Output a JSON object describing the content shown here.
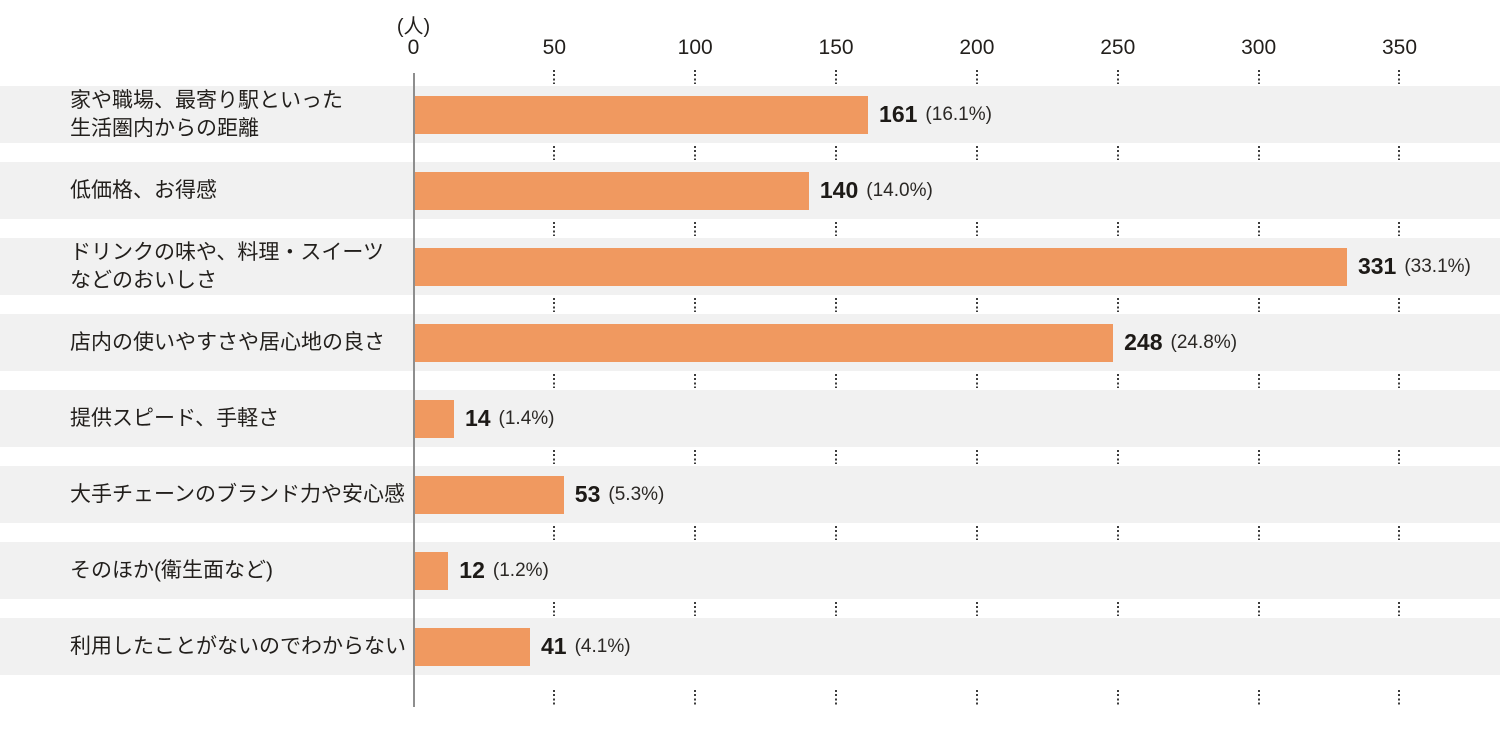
{
  "chart_data": {
    "type": "bar",
    "orientation": "horizontal",
    "title": "",
    "unit_label": "(人)",
    "xlabel": "(人)",
    "ylabel": "",
    "xlim": [
      0,
      350
    ],
    "grid": "dotted-vertical-segments-between-row-bands",
    "legend": "none",
    "bar_color": "#F09960",
    "band_color": "#F1F1F1",
    "axis": {
      "ticks": [
        "0",
        "50",
        "100",
        "150",
        "200",
        "250",
        "300",
        "350"
      ],
      "tick_values": [
        0,
        50,
        100,
        150,
        200,
        250,
        300,
        350
      ]
    },
    "categories": [
      "家や職場、最寄り駅といった生活圏内からの距離",
      "低価格、お得感",
      "ドリンクの味や、料理・スイーツなどのおいしさ",
      "店内の使いやすさや居心地の良さ",
      "提供スピード、手軽さ",
      "大手チェーンのブランド力や安心感",
      "そのほか(衛生面など)",
      "利用したことがないのでわからない"
    ],
    "values": [
      161,
      140,
      331,
      248,
      14,
      53,
      12,
      41
    ],
    "percents": [
      "16.1%",
      "14.0%",
      "33.1%",
      "24.8%",
      "1.4%",
      "5.3%",
      "1.2%",
      "4.1%"
    ],
    "rows": [
      {
        "label_lines": [
          "家や職場、最寄り駅といった",
          "生活圏内からの距離"
        ],
        "value": 161,
        "value_label": "161",
        "pct_label": "(16.1%)"
      },
      {
        "label_lines": [
          "低価格、お得感"
        ],
        "value": 140,
        "value_label": "140",
        "pct_label": "(14.0%)"
      },
      {
        "label_lines": [
          "ドリンクの味や、料理・スイーツ",
          "などのおいしさ"
        ],
        "value": 331,
        "value_label": "331",
        "pct_label": "(33.1%)"
      },
      {
        "label_lines": [
          "店内の使いやすさや居心地の良さ"
        ],
        "value": 248,
        "value_label": "248",
        "pct_label": "(24.8%)"
      },
      {
        "label_lines": [
          "提供スピード、手軽さ"
        ],
        "value": 14,
        "value_label": "14",
        "pct_label": "(1.4%)"
      },
      {
        "label_lines": [
          "大手チェーンのブランド力や安心感"
        ],
        "value": 53,
        "value_label": "53",
        "pct_label": "(5.3%)"
      },
      {
        "label_lines": [
          "そのほか(衛生面など)"
        ],
        "value": 12,
        "value_label": "12",
        "pct_label": "(1.2%)"
      },
      {
        "label_lines": [
          "利用したことがないのでわからない"
        ],
        "value": 41,
        "value_label": "41",
        "pct_label": "(4.1%)"
      }
    ]
  }
}
